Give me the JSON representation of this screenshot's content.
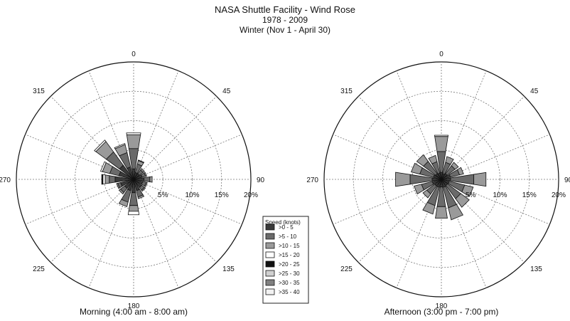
{
  "title": "NASA Shuttle Facility - Wind Rose",
  "subtitle_years": "1978 - 2009",
  "subtitle_season": "Winter (Nov 1 - April 30)",
  "chart_data": [
    {
      "type": "wind-rose",
      "caption": "Morning (4:00 am - 8:00 am)",
      "direction_labels": [
        "0",
        "45",
        "90",
        "135",
        "180",
        "225",
        "270",
        "315"
      ],
      "radial_ticks": [
        "5%",
        "10%",
        "15%",
        "20%"
      ],
      "radial_max": 20,
      "sector_width_deg": 22.5,
      "speed_bins": [
        ">0 - 5",
        ">5 - 10",
        ">10 - 15",
        ">15 - 20",
        ">20 - 25",
        ">25 - 30",
        ">30 - 35",
        ">35 - 40"
      ],
      "sectors": [
        {
          "direction": 0,
          "freq_by_bin": [
            1.8,
            3.5,
            2.4,
            0.3,
            0,
            0,
            0,
            0
          ]
        },
        {
          "direction": 22.5,
          "freq_by_bin": [
            1.2,
            1.5,
            0.6,
            0.1,
            0,
            0,
            0,
            0
          ]
        },
        {
          "direction": 45,
          "freq_by_bin": [
            1.2,
            0.8,
            0.3,
            0,
            0,
            0,
            0,
            0
          ]
        },
        {
          "direction": 67.5,
          "freq_by_bin": [
            1.5,
            0.6,
            0.2,
            0,
            0,
            0,
            0,
            0
          ]
        },
        {
          "direction": 90,
          "freq_by_bin": [
            1.8,
            1.0,
            0.4,
            0,
            0,
            0,
            0,
            0
          ]
        },
        {
          "direction": 112.5,
          "freq_by_bin": [
            1.6,
            0.6,
            0.2,
            0,
            0,
            0,
            0,
            0
          ]
        },
        {
          "direction": 135,
          "freq_by_bin": [
            1.7,
            0.6,
            0.2,
            0,
            0,
            0,
            0,
            0
          ]
        },
        {
          "direction": 157.5,
          "freq_by_bin": [
            2.0,
            1.1,
            0.3,
            0,
            0,
            0,
            0,
            0
          ]
        },
        {
          "direction": 180,
          "freq_by_bin": [
            2.3,
            2.2,
            1.0,
            0.6,
            0,
            0,
            0,
            0
          ]
        },
        {
          "direction": 202.5,
          "freq_by_bin": [
            2.0,
            2.0,
            0.8,
            0,
            0,
            0,
            0,
            0
          ]
        },
        {
          "direction": 225,
          "freq_by_bin": [
            1.9,
            0.9,
            0.3,
            0,
            0,
            0,
            0,
            0
          ]
        },
        {
          "direction": 247.5,
          "freq_by_bin": [
            2.3,
            0.5,
            0.2,
            0,
            0,
            0,
            0,
            0
          ]
        },
        {
          "direction": 270,
          "freq_by_bin": [
            3.2,
            1.0,
            0.7,
            0.4,
            0.2,
            0,
            0,
            0
          ]
        },
        {
          "direction": 292.5,
          "freq_by_bin": [
            2.6,
            1.6,
            1.3,
            0.3,
            0,
            0,
            0,
            0
          ]
        },
        {
          "direction": 315,
          "freq_by_bin": [
            3.0,
            2.8,
            2.2,
            0.3,
            0,
            0,
            0,
            0
          ]
        },
        {
          "direction": 337.5,
          "freq_by_bin": [
            2.2,
            2.5,
            1.4,
            0.2,
            0,
            0,
            0,
            0
          ]
        }
      ]
    },
    {
      "type": "wind-rose",
      "caption": "Afternoon  (3:00 pm - 7:00 pm)",
      "direction_labels": [
        "0",
        "45",
        "90",
        "135",
        "180",
        "225",
        "270",
        "315"
      ],
      "radial_ticks": [
        "5%",
        "10%",
        "15%",
        "20%"
      ],
      "radial_max": 20,
      "sector_width_deg": 22.5,
      "speed_bins": [
        ">0 - 5",
        ">5 - 10",
        ">10 - 15",
        ">15 - 20",
        ">20 - 25",
        ">25 - 30",
        ">30 - 35",
        ">35 - 40"
      ],
      "sectors": [
        {
          "direction": 0,
          "freq_by_bin": [
            1.2,
            3.6,
            2.6,
            0.2,
            0,
            0,
            0,
            0
          ]
        },
        {
          "direction": 22.5,
          "freq_by_bin": [
            1.0,
            2.0,
            1.0,
            0,
            0,
            0,
            0,
            0
          ]
        },
        {
          "direction": 45,
          "freq_by_bin": [
            1.2,
            1.7,
            0.7,
            0,
            0,
            0,
            0,
            0
          ]
        },
        {
          "direction": 67.5,
          "freq_by_bin": [
            1.6,
            1.6,
            0.7,
            0,
            0,
            0,
            0,
            0
          ]
        },
        {
          "direction": 90,
          "freq_by_bin": [
            1.6,
            4.0,
            2.1,
            0,
            0,
            0,
            0,
            0
          ]
        },
        {
          "direction": 112.5,
          "freq_by_bin": [
            1.4,
            2.7,
            1.5,
            0,
            0,
            0,
            0,
            0
          ]
        },
        {
          "direction": 135,
          "freq_by_bin": [
            1.3,
            2.8,
            1.8,
            0,
            0,
            0,
            0,
            0
          ]
        },
        {
          "direction": 157.5,
          "freq_by_bin": [
            1.4,
            3.6,
            2.1,
            0,
            0,
            0,
            0,
            0
          ]
        },
        {
          "direction": 180,
          "freq_by_bin": [
            1.3,
            3.4,
            2.0,
            0,
            0,
            0,
            0,
            0
          ]
        },
        {
          "direction": 202.5,
          "freq_by_bin": [
            1.4,
            3.2,
            1.5,
            0,
            0,
            0,
            0,
            0
          ]
        },
        {
          "direction": 225,
          "freq_by_bin": [
            1.4,
            1.7,
            0.8,
            0,
            0,
            0,
            0,
            0
          ]
        },
        {
          "direction": 247.5,
          "freq_by_bin": [
            1.6,
            1.9,
            1.3,
            0,
            0,
            0,
            0,
            0
          ]
        },
        {
          "direction": 270,
          "freq_by_bin": [
            1.6,
            3.8,
            2.5,
            0,
            0,
            0,
            0,
            0
          ]
        },
        {
          "direction": 292.5,
          "freq_by_bin": [
            1.4,
            2.4,
            1.5,
            0,
            0,
            0,
            0,
            0
          ]
        },
        {
          "direction": 315,
          "freq_by_bin": [
            1.2,
            2.6,
            1.4,
            0,
            0,
            0,
            0,
            0
          ]
        },
        {
          "direction": 337.5,
          "freq_by_bin": [
            1.1,
            2.0,
            1.1,
            0,
            0,
            0,
            0,
            0
          ]
        }
      ]
    }
  ],
  "legend": {
    "title": "Speed (knots)",
    "items": [
      {
        "label": ">0 - 5",
        "color": "#3a3a3a"
      },
      {
        "label": ">5 - 10",
        "color": "#6a6a6a"
      },
      {
        "label": ">10 - 15",
        "color": "#9a9a9a"
      },
      {
        "label": ">15 - 20",
        "color": "#ffffff"
      },
      {
        "label": ">20 - 25",
        "color": "#111111"
      },
      {
        "label": ">25 - 30",
        "color": "#d0d0d0"
      },
      {
        "label": ">30 - 35",
        "color": "#808080"
      },
      {
        "label": ">35 - 40",
        "color": "#f2f2f2"
      }
    ]
  }
}
